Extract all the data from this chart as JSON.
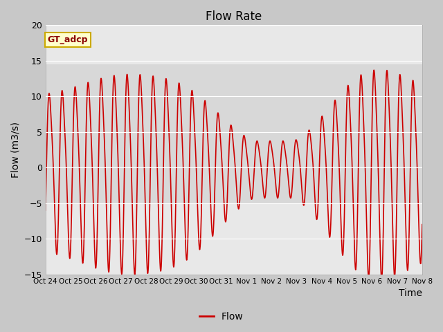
{
  "title": "Flow Rate",
  "xlabel": "Time",
  "ylabel": "Flow (m3/s)",
  "ylim": [
    -15,
    20
  ],
  "yticks": [
    -15,
    -10,
    -5,
    0,
    5,
    10,
    15,
    20
  ],
  "line_color": "#cc0000",
  "line_width": 1.2,
  "fig_bg_color": "#c8c8c8",
  "plot_bg_color": "#e8e8e8",
  "band_bg_color": "#d8d8d8",
  "legend_label": "Flow",
  "tag_label": "GT_adcp",
  "tag_bg": "#ffffcc",
  "tag_border": "#ccaa00",
  "x_tick_labels": [
    "Oct 24",
    "Oct 25",
    "Oct 26",
    "Oct 27",
    "Oct 28",
    "Oct 29",
    "Oct 30",
    "Oct 31",
    "Nov 1",
    "Nov 2",
    "Nov 3",
    "Nov 4",
    "Nov 5",
    "Nov 6",
    "Nov 7",
    "Nov 8"
  ],
  "num_days": 15,
  "tidal_period_hours": 12.42
}
